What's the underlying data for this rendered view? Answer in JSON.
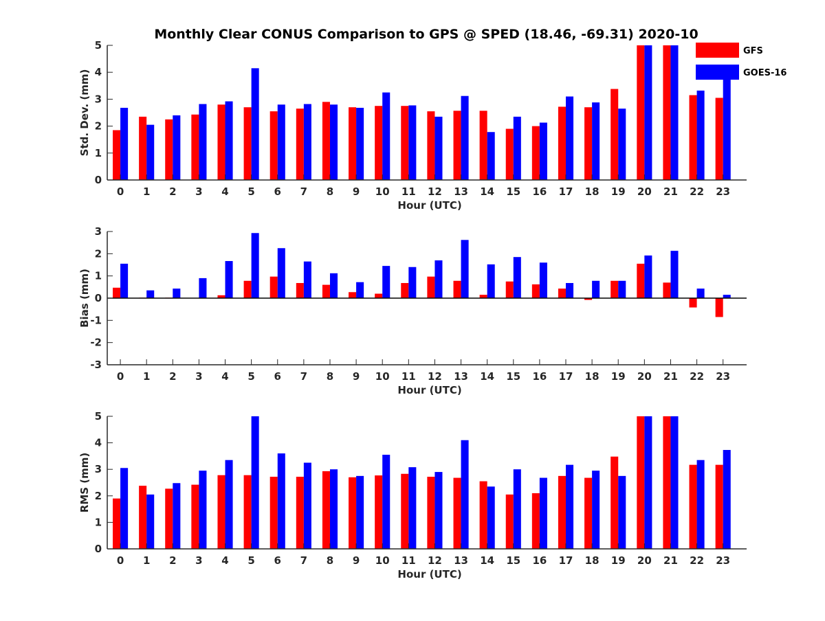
{
  "title": "Monthly Clear CONUS Comparison to GPS @ SPED (18.46, -69.31) 2020-10",
  "legend": [
    {
      "name": "GFS",
      "color": "#ff0000"
    },
    {
      "name": "GOES-16",
      "color": "#0000ff"
    }
  ],
  "chart_data": [
    {
      "type": "bar",
      "categories": [
        "0",
        "1",
        "2",
        "3",
        "4",
        "5",
        "6",
        "7",
        "8",
        "9",
        "10",
        "11",
        "12",
        "13",
        "14",
        "15",
        "16",
        "17",
        "18",
        "19",
        "20",
        "21",
        "22",
        "23"
      ],
      "xlabel": "Hour (UTC)",
      "ylabel": "Std. Dev. (mm)",
      "ylim": [
        0,
        5
      ],
      "yticks": [
        "0",
        "1",
        "2",
        "3",
        "4",
        "5"
      ],
      "legend_placement": "top-right",
      "series": [
        {
          "name": "GFS",
          "color": "#ff0000",
          "values": [
            1.85,
            2.35,
            2.25,
            2.43,
            2.8,
            2.7,
            2.55,
            2.65,
            2.9,
            2.7,
            2.75,
            2.75,
            2.55,
            2.57,
            2.57,
            1.9,
            2.0,
            2.72,
            2.7,
            3.38,
            5.0,
            5.0,
            3.15,
            3.05
          ]
        },
        {
          "name": "GOES-16",
          "color": "#0000ff",
          "values": [
            2.68,
            2.05,
            2.4,
            2.82,
            2.92,
            4.15,
            2.8,
            2.82,
            2.8,
            2.68,
            3.25,
            2.77,
            2.35,
            3.12,
            1.78,
            2.35,
            2.13,
            3.1,
            2.88,
            2.65,
            5.0,
            5.0,
            3.32,
            3.78
          ]
        }
      ]
    },
    {
      "type": "bar",
      "categories": [
        "0",
        "1",
        "2",
        "3",
        "4",
        "5",
        "6",
        "7",
        "8",
        "9",
        "10",
        "11",
        "12",
        "13",
        "14",
        "15",
        "16",
        "17",
        "18",
        "19",
        "20",
        "21",
        "22",
        "23"
      ],
      "xlabel": "Hour (UTC)",
      "ylabel": "Bias (mm)",
      "ylim": [
        -3,
        3
      ],
      "yticks": [
        "-3",
        "-2",
        "-1",
        "0",
        "1",
        "2",
        "3"
      ],
      "series": [
        {
          "name": "GFS",
          "color": "#ff0000",
          "values": [
            0.47,
            0.02,
            0.02,
            0.0,
            0.13,
            0.78,
            0.97,
            0.68,
            0.6,
            0.27,
            0.2,
            0.68,
            0.97,
            0.78,
            0.15,
            0.75,
            0.62,
            0.43,
            -0.08,
            0.78,
            1.55,
            0.7,
            -0.42,
            -0.85
          ]
        },
        {
          "name": "GOES-16",
          "color": "#0000ff",
          "values": [
            1.55,
            0.35,
            0.43,
            0.9,
            1.67,
            2.93,
            2.25,
            1.65,
            1.12,
            0.72,
            1.45,
            1.4,
            1.7,
            2.62,
            1.52,
            1.85,
            1.6,
            0.68,
            0.78,
            0.78,
            1.92,
            2.13,
            0.43,
            0.15
          ]
        }
      ]
    },
    {
      "type": "bar",
      "categories": [
        "0",
        "1",
        "2",
        "3",
        "4",
        "5",
        "6",
        "7",
        "8",
        "9",
        "10",
        "11",
        "12",
        "13",
        "14",
        "15",
        "16",
        "17",
        "18",
        "19",
        "20",
        "21",
        "22",
        "23"
      ],
      "xlabel": "Hour (UTC)",
      "ylabel": "RMS (mm)",
      "ylim": [
        0,
        5
      ],
      "yticks": [
        "0",
        "1",
        "2",
        "3",
        "4",
        "5"
      ],
      "series": [
        {
          "name": "GFS",
          "color": "#ff0000",
          "values": [
            1.9,
            2.38,
            2.27,
            2.42,
            2.78,
            2.78,
            2.72,
            2.72,
            2.93,
            2.7,
            2.77,
            2.83,
            2.72,
            2.68,
            2.55,
            2.05,
            2.1,
            2.75,
            2.68,
            3.48,
            5.0,
            5.0,
            3.17,
            3.17
          ]
        },
        {
          "name": "GOES-16",
          "color": "#0000ff",
          "values": [
            3.05,
            2.05,
            2.48,
            2.95,
            3.35,
            5.0,
            3.6,
            3.25,
            3.0,
            2.75,
            3.55,
            3.08,
            2.9,
            4.1,
            2.35,
            3.0,
            2.68,
            3.17,
            2.95,
            2.75,
            5.0,
            5.0,
            3.35,
            3.73
          ]
        }
      ]
    }
  ]
}
